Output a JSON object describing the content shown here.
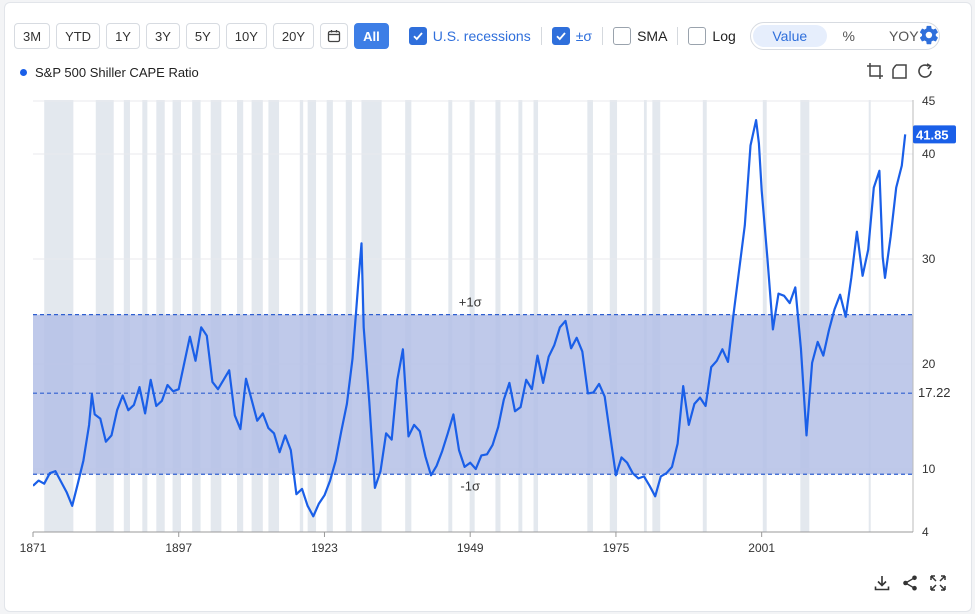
{
  "toolbar": {
    "ranges": [
      "3M",
      "YTD",
      "1Y",
      "3Y",
      "5Y",
      "10Y",
      "20Y"
    ],
    "calendar_icon": "calendar-icon",
    "all_label": "All",
    "recessions_label": "U.S. recessions",
    "sigma_label": "±σ",
    "sma_label": "SMA",
    "log_label": "Log",
    "modes": [
      "Value",
      "%",
      "YOY"
    ],
    "settings_icon": "gear-icon"
  },
  "colors": {
    "line": "#1a5fe8",
    "band": "#b4bfe6",
    "recession": "#e3e8ee",
    "accent": "#2f6fdb"
  },
  "legend": {
    "series_name": "S&P 500 Shiller CAPE Ratio"
  },
  "chart_data": {
    "type": "line",
    "series": [
      {
        "name": "S&P 500 Shiller CAPE Ratio"
      }
    ],
    "x_ticks": [
      "1871",
      "1897",
      "1923",
      "1949",
      "1975",
      "2001"
    ],
    "x_range": [
      1871,
      2028
    ],
    "y_ticks": [
      "4",
      "10",
      "20",
      "30",
      "40",
      "45"
    ],
    "y_range": [
      4,
      45
    ],
    "y_scale": "custom",
    "mean": 17.22,
    "mean_label": "17.22",
    "plus_sigma": 24.7,
    "minus_sigma": 9.5,
    "plus_sigma_label": "+1σ",
    "minus_sigma_label": "-1σ",
    "last_value": 41.85,
    "last_value_label": "41.85",
    "recessions": [
      [
        1873,
        1878.2
      ],
      [
        1882.2,
        1885.4
      ],
      [
        1887.2,
        1888.3
      ],
      [
        1890.5,
        1891.4
      ],
      [
        1893,
        1894.5
      ],
      [
        1895.9,
        1897.4
      ],
      [
        1899.4,
        1900.9
      ],
      [
        1902.7,
        1904.6
      ],
      [
        1907.4,
        1908.5
      ],
      [
        1910,
        1912
      ],
      [
        1913,
        1914.9
      ],
      [
        1918.6,
        1919.2
      ],
      [
        1920,
        1921.5
      ],
      [
        1923.4,
        1924.5
      ],
      [
        1926.8,
        1927.9
      ],
      [
        1929.6,
        1933.2
      ],
      [
        1937.4,
        1938.5
      ],
      [
        1945.1,
        1945.8
      ],
      [
        1948.9,
        1949.8
      ],
      [
        1953.5,
        1954.4
      ],
      [
        1957.6,
        1958.3
      ],
      [
        1960.3,
        1961.1
      ],
      [
        1969.9,
        1970.9
      ],
      [
        1973.9,
        1975.2
      ],
      [
        1980,
        1980.5
      ],
      [
        1981.5,
        1982.9
      ],
      [
        1990.5,
        1991.2
      ],
      [
        2001.2,
        2001.9
      ],
      [
        2007.9,
        2009.5
      ],
      [
        2020.1,
        2020.4
      ]
    ],
    "points": [
      [
        1871,
        8.4
      ],
      [
        1872,
        8.9
      ],
      [
        1873,
        8.6
      ],
      [
        1874,
        9.6
      ],
      [
        1875,
        9.8
      ],
      [
        1877,
        7.8
      ],
      [
        1878,
        6.5
      ],
      [
        1879,
        8.6
      ],
      [
        1880,
        10.8
      ],
      [
        1881,
        14.2
      ],
      [
        1881.5,
        17.1
      ],
      [
        1882,
        15.2
      ],
      [
        1883,
        14.8
      ],
      [
        1884,
        12.6
      ],
      [
        1885,
        13.2
      ],
      [
        1886,
        15.6
      ],
      [
        1887,
        17.0
      ],
      [
        1888,
        15.6
      ],
      [
        1889,
        16.1
      ],
      [
        1890,
        17.8
      ],
      [
        1891,
        15.3
      ],
      [
        1892,
        18.5
      ],
      [
        1893,
        16.0
      ],
      [
        1894,
        16.5
      ],
      [
        1895,
        18.0
      ],
      [
        1896,
        17.4
      ],
      [
        1897,
        17.6
      ],
      [
        1898,
        20.1
      ],
      [
        1899,
        22.6
      ],
      [
        1900,
        20.3
      ],
      [
        1901,
        23.5
      ],
      [
        1902,
        22.7
      ],
      [
        1903,
        18.3
      ],
      [
        1904,
        17.6
      ],
      [
        1905,
        18.5
      ],
      [
        1906,
        19.4
      ],
      [
        1907,
        15.1
      ],
      [
        1908,
        13.8
      ],
      [
        1909,
        18.6
      ],
      [
        1910,
        16.6
      ],
      [
        1911,
        14.6
      ],
      [
        1912,
        15.3
      ],
      [
        1913,
        13.9
      ],
      [
        1914,
        13.4
      ],
      [
        1915,
        11.6
      ],
      [
        1916,
        13.2
      ],
      [
        1917,
        11.8
      ],
      [
        1918,
        7.6
      ],
      [
        1919,
        8.1
      ],
      [
        1920,
        6.5
      ],
      [
        1921,
        5.5
      ],
      [
        1922,
        6.7
      ],
      [
        1923,
        7.5
      ],
      [
        1924,
        8.9
      ],
      [
        1925,
        10.8
      ],
      [
        1926,
        13.6
      ],
      [
        1927,
        16.2
      ],
      [
        1928,
        20.5
      ],
      [
        1929,
        27.5
      ],
      [
        1929.6,
        31.5
      ],
      [
        1930,
        23.5
      ],
      [
        1931,
        16.4
      ],
      [
        1932,
        8.2
      ],
      [
        1933,
        9.8
      ],
      [
        1934,
        13.4
      ],
      [
        1935,
        12.8
      ],
      [
        1936,
        18.5
      ],
      [
        1937,
        21.4
      ],
      [
        1938,
        13.1
      ],
      [
        1939,
        14.2
      ],
      [
        1940,
        13.6
      ],
      [
        1941,
        11.2
      ],
      [
        1942,
        9.4
      ],
      [
        1943,
        10.3
      ],
      [
        1944,
        11.7
      ],
      [
        1945,
        13.4
      ],
      [
        1946,
        15.2
      ],
      [
        1947,
        11.8
      ],
      [
        1948,
        10.2
      ],
      [
        1949,
        10.6
      ],
      [
        1950,
        10.0
      ],
      [
        1951,
        11.3
      ],
      [
        1952,
        11.4
      ],
      [
        1953,
        12.3
      ],
      [
        1954,
        14.0
      ],
      [
        1955,
        16.6
      ],
      [
        1956,
        18.2
      ],
      [
        1957,
        15.5
      ],
      [
        1958,
        15.9
      ],
      [
        1959,
        18.5
      ],
      [
        1960,
        17.6
      ],
      [
        1961,
        20.8
      ],
      [
        1962,
        18.2
      ],
      [
        1963,
        20.7
      ],
      [
        1964,
        21.8
      ],
      [
        1965,
        23.5
      ],
      [
        1966,
        24.1
      ],
      [
        1967,
        21.5
      ],
      [
        1968,
        22.5
      ],
      [
        1969,
        21.2
      ],
      [
        1970,
        17.2
      ],
      [
        1971,
        17.3
      ],
      [
        1972,
        18.1
      ],
      [
        1973,
        16.9
      ],
      [
        1974,
        13.1
      ],
      [
        1975,
        9.4
      ],
      [
        1976,
        11.1
      ],
      [
        1977,
        10.6
      ],
      [
        1978,
        9.6
      ],
      [
        1979,
        9.1
      ],
      [
        1980,
        9.3
      ],
      [
        1981,
        8.4
      ],
      [
        1982,
        7.4
      ],
      [
        1983,
        9.3
      ],
      [
        1984,
        9.6
      ],
      [
        1985,
        10.2
      ],
      [
        1986,
        12.4
      ],
      [
        1987,
        17.9
      ],
      [
        1988,
        14.2
      ],
      [
        1989,
        16.2
      ],
      [
        1990,
        16.8
      ],
      [
        1991,
        16.0
      ],
      [
        1992,
        19.7
      ],
      [
        1993,
        20.3
      ],
      [
        1994,
        21.4
      ],
      [
        1995,
        20.2
      ],
      [
        1996,
        24.8
      ],
      [
        1997,
        29.0
      ],
      [
        1998,
        33.2
      ],
      [
        1999,
        40.8
      ],
      [
        2000,
        43.2
      ],
      [
        2000.5,
        41.0
      ],
      [
        2001,
        36.5
      ],
      [
        2002,
        30.2
      ],
      [
        2003,
        23.3
      ],
      [
        2004,
        26.7
      ],
      [
        2005,
        26.5
      ],
      [
        2006,
        25.8
      ],
      [
        2007,
        27.3
      ],
      [
        2008,
        21.5
      ],
      [
        2009,
        13.2
      ],
      [
        2010,
        20.1
      ],
      [
        2011,
        22.1
      ],
      [
        2012,
        20.8
      ],
      [
        2013,
        23.2
      ],
      [
        2014,
        25.2
      ],
      [
        2015,
        26.6
      ],
      [
        2016,
        24.5
      ],
      [
        2017,
        28.2
      ],
      [
        2018,
        32.6
      ],
      [
        2019,
        28.4
      ],
      [
        2020,
        30.9
      ],
      [
        2021,
        36.8
      ],
      [
        2022,
        38.4
      ],
      [
        2022.6,
        30.2
      ],
      [
        2023,
        28.2
      ],
      [
        2024,
        32.1
      ],
      [
        2025,
        36.8
      ],
      [
        2026,
        38.9
      ],
      [
        2026.6,
        41.85
      ]
    ]
  },
  "bottom_tools": [
    "download-icon",
    "share-icon",
    "expand-icon"
  ]
}
